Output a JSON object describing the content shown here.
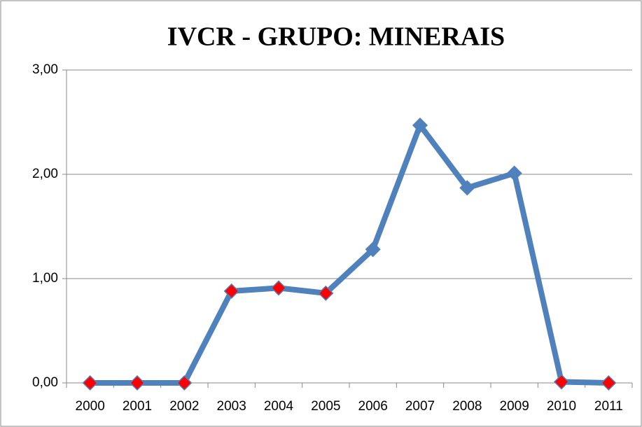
{
  "chart_data": {
    "type": "line",
    "title": "IVCR - GRUPO: MINERAIS",
    "categories": [
      "2000",
      "2001",
      "2002",
      "2003",
      "2004",
      "2005",
      "2006",
      "2007",
      "2008",
      "2009",
      "2010",
      "2011"
    ],
    "series": [
      {
        "name": "IVCR",
        "color": "#4f81bd",
        "marker_colors": [
          "#ff0000",
          "#ff0000",
          "#ff0000",
          "#ff0000",
          "#ff0000",
          "#ff0000",
          "#4f81bd",
          "#4f81bd",
          "#4f81bd",
          "#4f81bd",
          "#ff0000",
          "#ff0000"
        ],
        "values": [
          0,
          0,
          0,
          0.88,
          0.91,
          0.86,
          1.28,
          2.47,
          1.87,
          2.01,
          0.01,
          0
        ]
      }
    ],
    "ylim": [
      0,
      3
    ],
    "yticks": [
      {
        "value": 0,
        "label": "0,00"
      },
      {
        "value": 1,
        "label": "1,00"
      },
      {
        "value": 2,
        "label": "2,00"
      },
      {
        "value": 3,
        "label": "3,00"
      }
    ],
    "grid": true
  }
}
